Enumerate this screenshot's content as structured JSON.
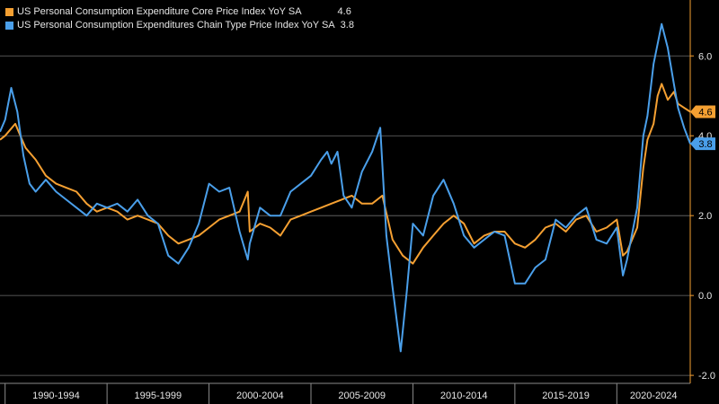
{
  "chart_data": {
    "type": "line",
    "title": "",
    "xlabel": "",
    "ylabel": "",
    "xlim": [
      1989.75,
      2023.6
    ],
    "ylim": [
      -2.2,
      7.4
    ],
    "y_ticks": [
      -2.0,
      0.0,
      2.0,
      4.0,
      6.0
    ],
    "y_tick_labels": [
      "-2.0",
      "0.0",
      "2.0",
      "4.0",
      "6.0"
    ],
    "x_periods": [
      {
        "label": "1990-1994",
        "start": 1990,
        "end": 1995
      },
      {
        "label": "1995-1999",
        "start": 1995,
        "end": 2000
      },
      {
        "label": "2000-2004",
        "start": 2000,
        "end": 2005
      },
      {
        "label": "2005-2009",
        "start": 2005,
        "end": 2010
      },
      {
        "label": "2010-2014",
        "start": 2010,
        "end": 2015
      },
      {
        "label": "2015-2019",
        "start": 2015,
        "end": 2020
      },
      {
        "label": "2020-2024",
        "start": 2020,
        "end": 2025
      }
    ],
    "grid": true,
    "legend_position": "top-left",
    "series": [
      {
        "name": "US Personal Consumption Expenditure Core Price Index YoY SA",
        "last_value": "4.6",
        "color": "#f5a032",
        "x": [
          1989.75,
          1990.0,
          1990.5,
          1991.0,
          1991.5,
          1992.0,
          1992.5,
          1993.0,
          1993.5,
          1994.0,
          1994.5,
          1995.0,
          1995.5,
          1996.0,
          1996.5,
          1997.0,
          1997.5,
          1998.0,
          1998.5,
          1999.0,
          1999.5,
          2000.0,
          2000.5,
          2001.0,
          2001.5,
          2001.9,
          2002.0,
          2002.5,
          2003.0,
          2003.5,
          2004.0,
          2004.5,
          2005.0,
          2005.5,
          2006.0,
          2006.5,
          2007.0,
          2007.5,
          2008.0,
          2008.5,
          2009.0,
          2009.5,
          2010.0,
          2010.5,
          2011.0,
          2011.5,
          2012.0,
          2012.5,
          2013.0,
          2013.5,
          2014.0,
          2014.5,
          2015.0,
          2015.5,
          2016.0,
          2016.5,
          2017.0,
          2017.5,
          2018.0,
          2018.5,
          2019.0,
          2019.5,
          2020.0,
          2020.3,
          2020.5,
          2021.0,
          2021.3,
          2021.5,
          2021.8,
          2022.0,
          2022.2,
          2022.5,
          2022.8,
          2023.0,
          2023.3,
          2023.6
        ],
        "y": [
          3.9,
          4.0,
          4.3,
          3.7,
          3.4,
          3.0,
          2.8,
          2.7,
          2.6,
          2.3,
          2.1,
          2.2,
          2.1,
          1.9,
          2.0,
          1.9,
          1.8,
          1.5,
          1.3,
          1.4,
          1.5,
          1.7,
          1.9,
          2.0,
          2.1,
          2.6,
          1.6,
          1.8,
          1.7,
          1.5,
          1.9,
          2.0,
          2.1,
          2.2,
          2.3,
          2.4,
          2.5,
          2.3,
          2.3,
          2.5,
          1.4,
          1.0,
          0.8,
          1.2,
          1.5,
          1.8,
          2.0,
          1.8,
          1.3,
          1.5,
          1.6,
          1.6,
          1.3,
          1.2,
          1.4,
          1.7,
          1.8,
          1.6,
          1.9,
          2.0,
          1.6,
          1.7,
          1.9,
          1.0,
          1.1,
          1.7,
          3.2,
          3.9,
          4.3,
          5.0,
          5.3,
          4.9,
          5.1,
          4.8,
          4.7,
          4.6
        ]
      },
      {
        "name": "US Personal Consumption Expenditures Chain Type Price Index YoY SA",
        "last_value": "3.8",
        "color": "#4a9fea",
        "x": [
          1989.75,
          1990.0,
          1990.3,
          1990.6,
          1990.9,
          1991.2,
          1991.5,
          1992.0,
          1992.5,
          1993.0,
          1993.5,
          1994.0,
          1994.5,
          1995.0,
          1995.5,
          1996.0,
          1996.5,
          1997.0,
          1997.5,
          1998.0,
          1998.5,
          1999.0,
          1999.5,
          2000.0,
          2000.5,
          2001.0,
          2001.5,
          2001.9,
          2002.0,
          2002.5,
          2003.0,
          2003.5,
          2004.0,
          2004.5,
          2005.0,
          2005.5,
          2005.8,
          2006.0,
          2006.3,
          2006.6,
          2007.0,
          2007.5,
          2008.0,
          2008.4,
          2008.7,
          2009.0,
          2009.4,
          2009.7,
          2010.0,
          2010.5,
          2011.0,
          2011.5,
          2012.0,
          2012.5,
          2013.0,
          2013.5,
          2014.0,
          2014.5,
          2015.0,
          2015.5,
          2016.0,
          2016.5,
          2017.0,
          2017.5,
          2018.0,
          2018.5,
          2019.0,
          2019.5,
          2020.0,
          2020.3,
          2020.5,
          2021.0,
          2021.3,
          2021.5,
          2021.8,
          2022.0,
          2022.2,
          2022.5,
          2022.8,
          2023.0,
          2023.3,
          2023.6
        ],
        "y": [
          4.1,
          4.4,
          5.2,
          4.6,
          3.5,
          2.8,
          2.6,
          2.9,
          2.6,
          2.4,
          2.2,
          2.0,
          2.3,
          2.2,
          2.3,
          2.1,
          2.4,
          2.0,
          1.8,
          1.0,
          0.8,
          1.2,
          1.8,
          2.8,
          2.6,
          2.7,
          1.6,
          0.9,
          1.3,
          2.2,
          2.0,
          2.0,
          2.6,
          2.8,
          3.0,
          3.4,
          3.6,
          3.3,
          3.6,
          2.5,
          2.2,
          3.1,
          3.6,
          4.2,
          1.5,
          0.2,
          -1.4,
          0.1,
          1.8,
          1.5,
          2.5,
          2.9,
          2.3,
          1.5,
          1.2,
          1.4,
          1.6,
          1.5,
          0.3,
          0.3,
          0.7,
          0.9,
          1.9,
          1.7,
          2.0,
          2.2,
          1.4,
          1.3,
          1.7,
          0.5,
          0.9,
          2.2,
          4.0,
          4.5,
          5.8,
          6.3,
          6.8,
          6.2,
          5.3,
          4.7,
          4.2,
          3.8
        ]
      }
    ]
  }
}
